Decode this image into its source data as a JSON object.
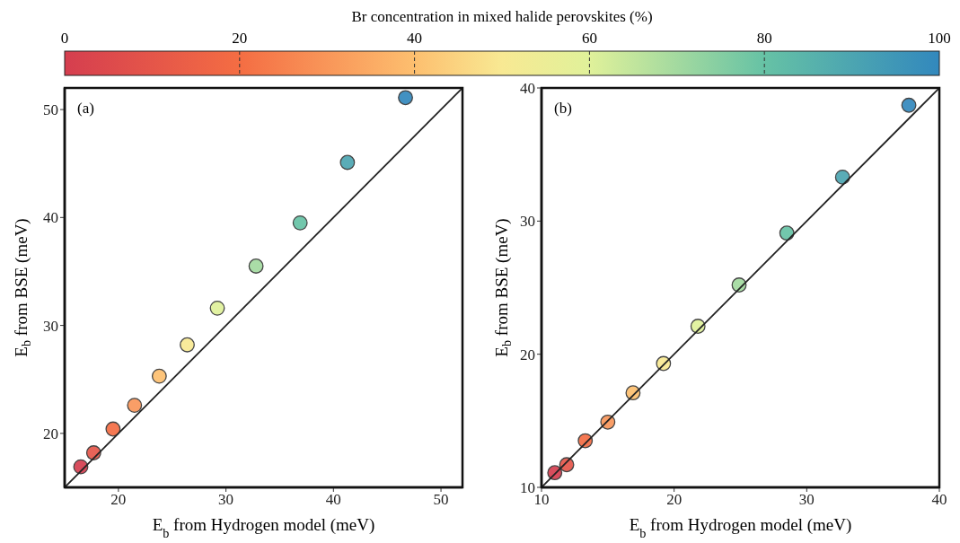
{
  "chart_data": [
    {
      "type": "scatter",
      "annotations": [
        "(a)"
      ],
      "xlabel": "E$_{b}$ from Hydrogen model (meV)",
      "ylabel": "E$_{b}$ from BSE (meV)",
      "clabel": "Br concentration in mixed halide perovskites (%)",
      "clim": [
        0,
        100
      ],
      "cticks": [
        0,
        20,
        40,
        60,
        80,
        100
      ],
      "xlim": [
        15,
        52
      ],
      "ylim": [
        15,
        52
      ],
      "xticks": [
        20,
        30,
        40,
        50
      ],
      "yticks": [
        20,
        30,
        40,
        50
      ],
      "series": [
        {
          "marker": "circle",
          "x": [
            16.5,
            17.7,
            19.5,
            21.5,
            23.8,
            26.4,
            29.2,
            32.8,
            36.9,
            41.3,
            46.7
          ],
          "values": [
            16.9,
            18.2,
            20.4,
            22.6,
            25.3,
            28.2,
            31.6,
            35.5,
            39.5,
            45.1,
            51.1
          ],
          "colors": [
            "#d53e4f",
            "#e5564a",
            "#f46d43",
            "#f9965a",
            "#fdbf6f",
            "#f8e993",
            "#e0f19a",
            "#a3da9f",
            "#66c2a5",
            "#4ca5b1",
            "#3288bd"
          ]
        },
        {
          "type": "line",
          "marker": "none",
          "color": "#222222",
          "x": [
            15,
            52
          ],
          "values": [
            15,
            52
          ]
        }
      ]
    },
    {
      "type": "scatter",
      "annotations": [
        "(b)"
      ],
      "xlabel": "E$_{b}$ from Hydrogen model (meV)",
      "ylabel": "E$_{b}$ from BSE (meV)",
      "xlim": [
        10,
        40
      ],
      "ylim": [
        10,
        40
      ],
      "xticks": [
        10,
        20,
        30,
        40
      ],
      "yticks": [
        10,
        20,
        30,
        40
      ],
      "series": [
        {
          "marker": "circle",
          "x": [
            11.0,
            11.9,
            13.3,
            15.0,
            16.9,
            19.2,
            21.8,
            24.9,
            28.5,
            32.7,
            37.7
          ],
          "values": [
            11.1,
            11.7,
            13.5,
            14.9,
            17.1,
            19.3,
            22.1,
            25.2,
            29.1,
            33.3,
            38.7
          ],
          "colors": [
            "#d53e4f",
            "#e5564a",
            "#f46d43",
            "#f9965a",
            "#fdbf6f",
            "#f8e993",
            "#e0f19a",
            "#a3da9f",
            "#66c2a5",
            "#4ca5b1",
            "#3288bd"
          ]
        },
        {
          "type": "line",
          "marker": "none",
          "color": "#222222",
          "x": [
            10,
            40
          ],
          "values": [
            10,
            40
          ]
        }
      ]
    }
  ]
}
